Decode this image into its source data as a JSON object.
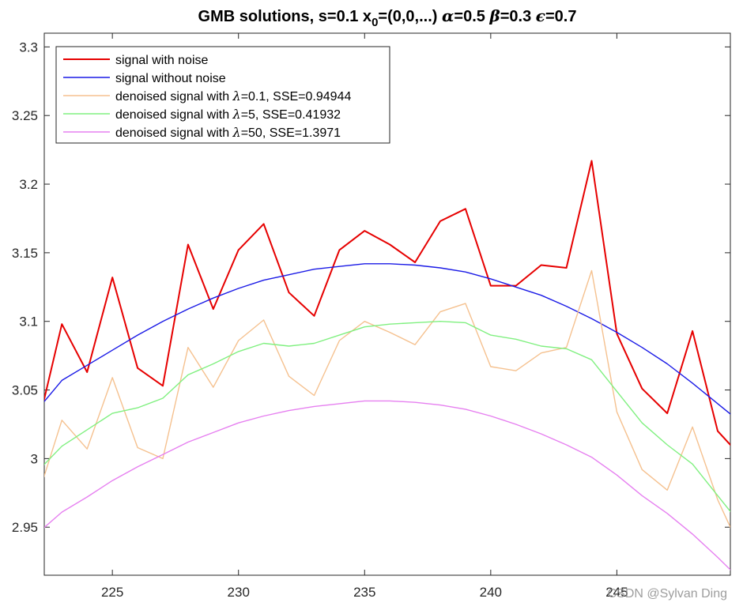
{
  "chart_data": {
    "type": "line",
    "title": "GMB solutions, s=0.1 x₀=(0,0,...) α=0.5 β=0.3 ε=0.7",
    "title_parts": {
      "main": "GMB solutions, s=0.1 x",
      "sub": "0",
      "tail": "=(0,0,...) ",
      "alpha_sym": "α",
      "alpha_val": "=0.5 ",
      "beta_sym": "β",
      "beta_val": "=0.3 ",
      "eps_sym": "ϵ",
      "eps_val": "=0.7"
    },
    "xlabel": "",
    "ylabel": "",
    "xlim": [
      222.3,
      249.5
    ],
    "ylim": [
      2.915,
      3.31
    ],
    "x_ticks": [
      225,
      230,
      235,
      240,
      245
    ],
    "y_ticks": [
      2.95,
      3,
      3.05,
      3.1,
      3.15,
      3.2,
      3.25,
      3.3
    ],
    "x_tick_labels": [
      "225",
      "230",
      "235",
      "240",
      "245"
    ],
    "y_tick_labels": [
      "2.95",
      "3",
      "3.05",
      "3.1",
      "3.15",
      "3.2",
      "3.25",
      "3.3"
    ],
    "grid": false,
    "legend_position": "top-left",
    "x": [
      222,
      223,
      224,
      225,
      226,
      227,
      228,
      229,
      230,
      231,
      232,
      233,
      234,
      235,
      236,
      237,
      238,
      239,
      240,
      241,
      242,
      243,
      244,
      245,
      246,
      247,
      248,
      249,
      250
    ],
    "series": [
      {
        "name": "signal with noise",
        "color": "#e60000",
        "width": 2,
        "values": [
          3.02,
          3.098,
          3.063,
          3.132,
          3.066,
          3.053,
          3.156,
          3.109,
          3.152,
          3.171,
          3.121,
          3.104,
          3.152,
          3.166,
          3.156,
          3.143,
          3.173,
          3.182,
          3.126,
          3.126,
          3.141,
          3.139,
          3.217,
          3.091,
          3.051,
          3.033,
          3.093,
          3.02,
          3.0
        ]
      },
      {
        "name": "signal without noise",
        "color": "#1a1ae6",
        "width": 1.4,
        "values": [
          3.035,
          3.057,
          3.068,
          3.079,
          3.09,
          3.1,
          3.109,
          3.117,
          3.124,
          3.13,
          3.134,
          3.138,
          3.14,
          3.142,
          3.142,
          3.141,
          3.139,
          3.136,
          3.131,
          3.125,
          3.119,
          3.111,
          3.102,
          3.092,
          3.081,
          3.069,
          3.055,
          3.04,
          3.025
        ]
      },
      {
        "name": "denoised signal with λ=0.1, SSE=0.94944",
        "legend_prefix": "denoised signal with ",
        "legend_lambda": "λ",
        "legend_suffix": "=0.1, SSE=0.94944",
        "color": "#f5c18f",
        "width": 1.4,
        "values": [
          2.97,
          3.028,
          3.007,
          3.059,
          3.008,
          3.0,
          3.081,
          3.052,
          3.086,
          3.101,
          3.06,
          3.046,
          3.086,
          3.1,
          3.092,
          3.083,
          3.107,
          3.113,
          3.067,
          3.064,
          3.077,
          3.081,
          3.137,
          3.034,
          2.992,
          2.977,
          3.023,
          2.97,
          2.93
        ]
      },
      {
        "name": "denoised signal with λ=5, SSE=0.41932",
        "legend_prefix": "denoised signal with ",
        "legend_lambda": "λ",
        "legend_suffix": "=5, SSE=0.41932",
        "color": "#80f080",
        "width": 1.4,
        "values": [
          2.99,
          3.009,
          3.021,
          3.033,
          3.037,
          3.044,
          3.061,
          3.069,
          3.078,
          3.084,
          3.082,
          3.084,
          3.09,
          3.096,
          3.098,
          3.099,
          3.1,
          3.099,
          3.09,
          3.087,
          3.082,
          3.08,
          3.072,
          3.049,
          3.026,
          3.01,
          2.996,
          2.973,
          2.95
        ]
      },
      {
        "name": "denoised signal with λ=50, SSE=1.3971",
        "legend_prefix": "denoised signal with ",
        "legend_lambda": "λ",
        "legend_suffix": "=50, SSE=1.3971",
        "color": "#e680f0",
        "width": 1.4,
        "values": [
          2.945,
          2.961,
          2.972,
          2.984,
          2.994,
          3.003,
          3.012,
          3.019,
          3.026,
          3.031,
          3.035,
          3.038,
          3.04,
          3.042,
          3.042,
          3.041,
          3.039,
          3.036,
          3.031,
          3.025,
          3.018,
          3.01,
          3.001,
          2.988,
          2.973,
          2.96,
          2.945,
          2.928,
          2.91
        ]
      }
    ]
  },
  "watermark": "CSDN @Sylvan Ding"
}
